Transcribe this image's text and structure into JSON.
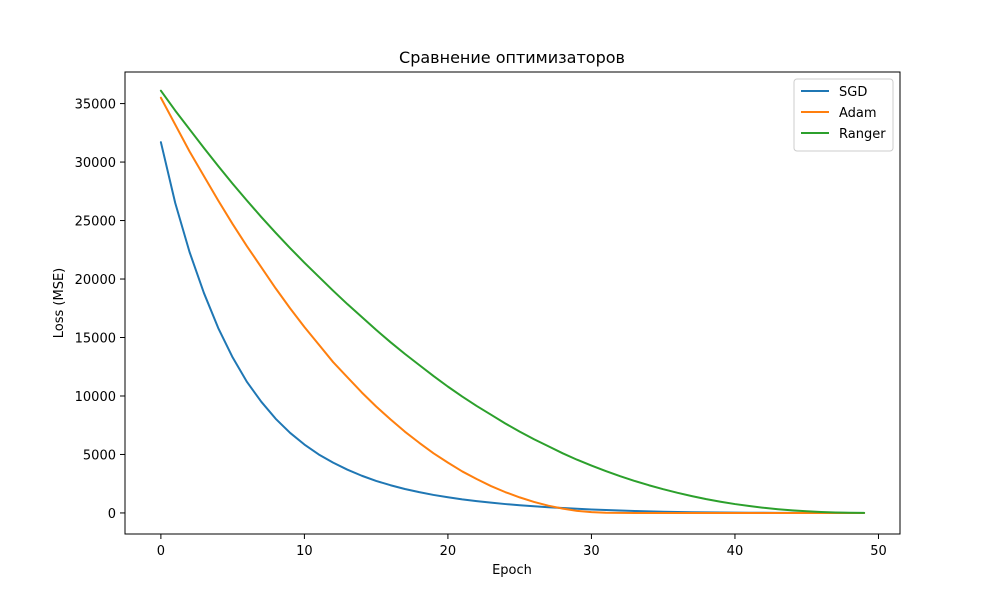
{
  "chart_data": {
    "type": "line",
    "title": "Сравнение оптимизаторов",
    "xlabel": "Epoch",
    "ylabel": "Loss (MSE)",
    "xlim": [
      -2.5,
      51.5
    ],
    "ylim": [
      -1800,
      37700
    ],
    "xticks": [
      0,
      10,
      20,
      30,
      40,
      50
    ],
    "yticks": [
      0,
      5000,
      10000,
      15000,
      20000,
      25000,
      30000,
      35000
    ],
    "grid": false,
    "legend_position": "top-right",
    "x": [
      0,
      1,
      2,
      3,
      4,
      5,
      6,
      7,
      8,
      9,
      10,
      11,
      12,
      13,
      14,
      15,
      16,
      17,
      18,
      19,
      20,
      21,
      22,
      23,
      24,
      25,
      26,
      27,
      28,
      29,
      30,
      31,
      32,
      33,
      34,
      35,
      36,
      37,
      38,
      39,
      40,
      41,
      42,
      43,
      44,
      45,
      46,
      47,
      48,
      49
    ],
    "series": [
      {
        "name": "SGD",
        "color": "#1f77b4",
        "values": [
          31700,
          26500,
          22300,
          18800,
          15800,
          13300,
          11200,
          9500,
          8050,
          6850,
          5850,
          5000,
          4300,
          3700,
          3180,
          2740,
          2370,
          2050,
          1780,
          1540,
          1340,
          1160,
          1010,
          880,
          760,
          660,
          570,
          490,
          420,
          360,
          300,
          250,
          205,
          165,
          130,
          100,
          78,
          60,
          45,
          33,
          25,
          18,
          13,
          9,
          6,
          4,
          3,
          2,
          1,
          0
        ]
      },
      {
        "name": "Adam",
        "color": "#ff7f0e",
        "values": [
          35500,
          33200,
          30900,
          28800,
          26700,
          24700,
          22800,
          21000,
          19200,
          17500,
          15900,
          14400,
          12900,
          11600,
          10300,
          9100,
          8000,
          6950,
          6000,
          5100,
          4300,
          3550,
          2900,
          2300,
          1780,
          1330,
          940,
          620,
          370,
          180,
          70,
          20,
          3,
          0,
          0,
          0,
          0,
          0,
          0,
          0,
          0,
          0,
          0,
          0,
          0,
          0,
          0,
          0,
          0,
          0
        ]
      },
      {
        "name": "Ranger",
        "color": "#2ca02c",
        "values": [
          36100,
          34400,
          32800,
          31200,
          29650,
          28150,
          26700,
          25300,
          23950,
          22650,
          21400,
          20200,
          19000,
          17850,
          16750,
          15650,
          14600,
          13600,
          12650,
          11700,
          10800,
          9950,
          9150,
          8400,
          7650,
          6950,
          6300,
          5700,
          5100,
          4550,
          4050,
          3580,
          3140,
          2740,
          2370,
          2030,
          1720,
          1440,
          1180,
          960,
          760,
          590,
          440,
          320,
          220,
          140,
          80,
          40,
          15,
          5
        ]
      }
    ]
  }
}
